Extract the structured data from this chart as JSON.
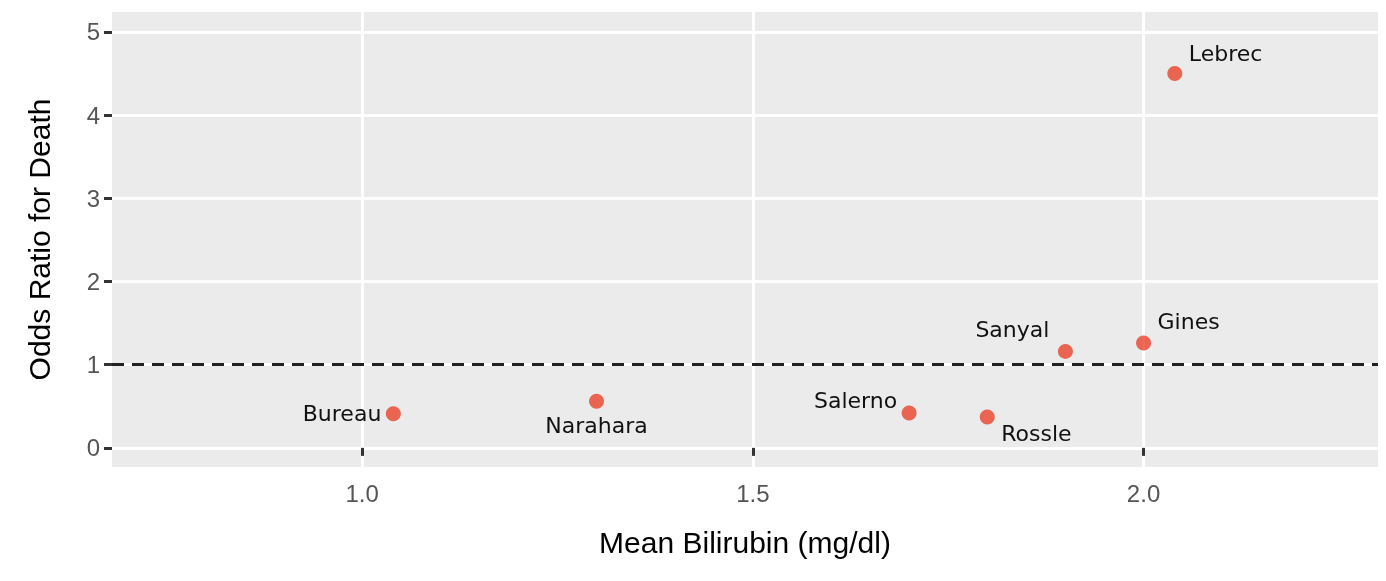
{
  "chart_data": {
    "type": "scatter",
    "xlabel": "Mean Bilirubin (mg/dl)",
    "ylabel": "Odds Ratio for Death",
    "x": [
      1.04,
      1.3,
      1.7,
      1.8,
      1.9,
      2.0,
      2.04
    ],
    "values": [
      0.41,
      0.56,
      0.42,
      0.37,
      1.16,
      1.26,
      4.5
    ],
    "color": "#e8432a",
    "marker": "circle",
    "xlim": [
      0.68,
      2.3
    ],
    "xticks": [
      {
        "value": 1.0,
        "label": "1.0"
      },
      {
        "value": 1.5,
        "label": "1.5"
      },
      {
        "value": 2.0,
        "label": "2.0"
      }
    ],
    "ylim": [
      -0.23,
      5.24
    ],
    "yticks": [
      0,
      1,
      2,
      3,
      4,
      5
    ],
    "grid": true,
    "ref_lines": [
      {
        "axis": "y",
        "value": 1,
        "line_style": "dashed",
        "color": "#222222"
      }
    ],
    "annotations": [
      {
        "text": "Bureau",
        "x": 1.04,
        "y": 0.41
      },
      {
        "text": "Narahara",
        "x": 1.3,
        "y": 0.56
      },
      {
        "text": "Salerno",
        "x": 1.7,
        "y": 0.42
      },
      {
        "text": "Rossle",
        "x": 1.8,
        "y": 0.37
      },
      {
        "text": "Sanyal",
        "x": 1.9,
        "y": 1.16
      },
      {
        "text": "Gines",
        "x": 2.0,
        "y": 1.26
      },
      {
        "text": "Lebrec",
        "x": 2.04,
        "y": 4.5
      }
    ]
  }
}
